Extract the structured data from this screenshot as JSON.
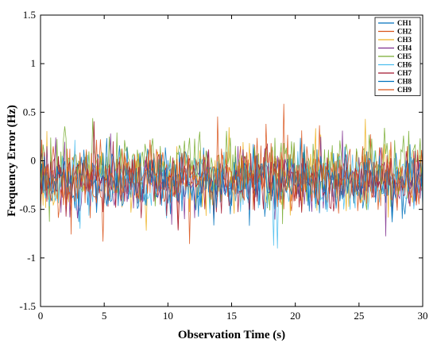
{
  "chart_data": {
    "type": "line",
    "title": "",
    "xlabel": "Observation Time (s)",
    "ylabel": "Frequency Error (Hz)",
    "xlim": [
      0,
      30
    ],
    "ylim": [
      -1.5,
      1.5
    ],
    "x_ticks": [
      0,
      5,
      10,
      15,
      20,
      25,
      30
    ],
    "x_tick_labels": [
      "0",
      "5",
      "10",
      "15",
      "20",
      "25",
      "30"
    ],
    "y_ticks": [
      -1.5,
      -1,
      -0.5,
      0,
      0.5,
      1,
      1.5
    ],
    "y_tick_labels": [
      "-1.5",
      "-1",
      "-0.5",
      "0",
      "0.5",
      "1",
      "1.5"
    ],
    "grid": false,
    "legend_position": "top-right",
    "series": [
      {
        "name": "CH1",
        "color": "#0072BD",
        "mean": -0.2,
        "std": 0.26
      },
      {
        "name": "CH2",
        "color": "#D95319",
        "mean": -0.15,
        "std": 0.26
      },
      {
        "name": "CH3",
        "color": "#EDB120",
        "mean": -0.18,
        "std": 0.27
      },
      {
        "name": "CH4",
        "color": "#7E2F8E",
        "mean": -0.2,
        "std": 0.25
      },
      {
        "name": "CH5",
        "color": "#77AC30",
        "mean": -0.05,
        "std": 0.3
      },
      {
        "name": "CH6",
        "color": "#4DBEEE",
        "mean": -0.22,
        "std": 0.24
      },
      {
        "name": "CH7",
        "color": "#A2142F",
        "mean": -0.2,
        "std": 0.25
      },
      {
        "name": "CH8",
        "color": "#0072BD",
        "mean": -0.2,
        "std": 0.26
      },
      {
        "name": "CH9",
        "color": "#D95319",
        "mean": -0.17,
        "std": 0.26
      }
    ],
    "samples_per_series": 300
  }
}
